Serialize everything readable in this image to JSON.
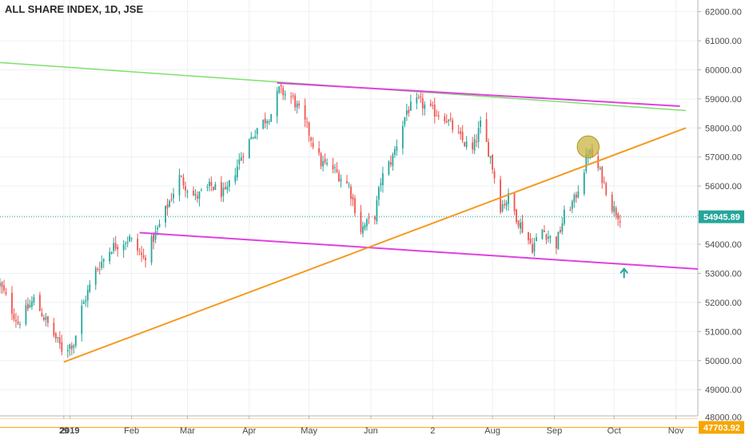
{
  "chart_data": {
    "type": "candlestick",
    "title": "ALL SHARE INDEX, 1D, JSE",
    "y_axis": {
      "position": "right",
      "range": [
        48100,
        62400
      ],
      "ticks": [
        49000,
        50000,
        51000,
        52000,
        53000,
        54000,
        55000,
        56000,
        57000,
        58000,
        59000,
        60000,
        61000,
        62000
      ],
      "tick_labels": [
        "49000.00",
        "50000.00",
        "51000.00",
        "52000.00",
        "53000.00",
        "54000.00",
        "55000.00",
        "56000.00",
        "57000.00",
        "58000.00",
        "59000.00",
        "60000.00",
        "61000.00",
        "62000.00"
      ]
    },
    "x_axis": {
      "range": [
        "2018-11-27",
        "2019-11-12"
      ],
      "ticks": [
        {
          "date": "2018-12-29",
          "label": "29"
        },
        {
          "date": "2019-01-01",
          "label": "2019"
        },
        {
          "date": "2019-02-01",
          "label": "Feb"
        },
        {
          "date": "2019-03-01",
          "label": "Mar"
        },
        {
          "date": "2019-04-01",
          "label": "Apr"
        },
        {
          "date": "2019-05-01",
          "label": "May"
        },
        {
          "date": "2019-06-01",
          "label": "Jun"
        },
        {
          "date": "2019-07-02",
          "label": "2"
        },
        {
          "date": "2019-08-01",
          "label": "Aug"
        },
        {
          "date": "2019-09-01",
          "label": "Sep"
        },
        {
          "date": "2019-10-01",
          "label": "Oct"
        },
        {
          "date": "2019-11-01",
          "label": "Nov"
        }
      ]
    },
    "grid": true,
    "colors": {
      "up": "#26a69a",
      "down": "#ef5350"
    },
    "price_markers": [
      {
        "value": 54945.89,
        "label": "54945.89",
        "color": "#26a69a",
        "line": "dotted"
      },
      {
        "value": 47703.92,
        "label": "47703.92",
        "color": "#f7a600",
        "line": "solid"
      },
      {
        "value": 48000.0,
        "label": "48000.00",
        "color": "#f7c56b",
        "line": "faint"
      }
    ],
    "key_points": [
      [
        "2018-11-27",
        52600
      ],
      [
        "2018-12-06",
        51300
      ],
      [
        "2018-12-14",
        52100
      ],
      [
        "2018-12-28",
        50400
      ],
      [
        "2019-01-03",
        50600
      ],
      [
        "2019-01-07",
        51800
      ],
      [
        "2019-01-14",
        53100
      ],
      [
        "2019-01-22",
        53900
      ],
      [
        "2019-01-31",
        54200
      ],
      [
        "2019-02-07",
        53500
      ],
      [
        "2019-02-14",
        54500
      ],
      [
        "2019-02-25",
        56300
      ],
      [
        "2019-03-05",
        55600
      ],
      [
        "2019-03-13",
        56000
      ],
      [
        "2019-03-20",
        55700
      ],
      [
        "2019-03-29",
        57200
      ],
      [
        "2019-04-05",
        58000
      ],
      [
        "2019-04-12",
        58500
      ],
      [
        "2019-04-16",
        59300
      ],
      [
        "2019-04-23",
        59000
      ],
      [
        "2019-04-30",
        58000
      ],
      [
        "2019-05-07",
        56800
      ],
      [
        "2019-05-13",
        56600
      ],
      [
        "2019-05-21",
        56000
      ],
      [
        "2019-05-27",
        54500
      ],
      [
        "2019-06-03",
        55000
      ],
      [
        "2019-06-06",
        56200
      ],
      [
        "2019-06-12",
        57000
      ],
      [
        "2019-06-19",
        58600
      ],
      [
        "2019-06-25",
        58900
      ],
      [
        "2019-07-01",
        58600
      ],
      [
        "2019-07-08",
        58400
      ],
      [
        "2019-07-15",
        57700
      ],
      [
        "2019-07-22",
        57200
      ],
      [
        "2019-07-26",
        58100
      ],
      [
        "2019-07-31",
        57000
      ],
      [
        "2019-08-05",
        55300
      ],
      [
        "2019-08-09",
        55600
      ],
      [
        "2019-08-14",
        54800
      ],
      [
        "2019-08-21",
        53900
      ],
      [
        "2019-08-26",
        54500
      ],
      [
        "2019-09-02",
        54000
      ],
      [
        "2019-09-06",
        55000
      ],
      [
        "2019-09-11",
        55500
      ],
      [
        "2019-09-16",
        56600
      ],
      [
        "2019-09-18",
        57200
      ],
      [
        "2019-09-20",
        57000
      ],
      [
        "2019-09-25",
        56300
      ],
      [
        "2019-09-30",
        55300
      ],
      [
        "2019-10-04",
        54946
      ]
    ],
    "drawings": {
      "trendlines": [
        {
          "color": "#7ee06a",
          "from": [
            "2018-11-27",
            60250
          ],
          "to": [
            "2019-11-06",
            58600
          ]
        },
        {
          "color": "#e040e0",
          "from": [
            "2019-04-15",
            59550
          ],
          "to": [
            "2019-11-03",
            58750
          ]
        },
        {
          "color": "#e040e0",
          "from": [
            "2019-02-05",
            54400
          ],
          "to": [
            "2019-11-12",
            53150
          ]
        },
        {
          "color": "#f59a23",
          "from": [
            "2018-12-29",
            49950
          ],
          "to": [
            "2019-11-06",
            58000
          ]
        }
      ],
      "circle": {
        "center": [
          "2019-09-18",
          57350
        ],
        "radius_days": 5.5,
        "fill": "#c9b13a",
        "stroke": "#b0961c"
      },
      "arrow": {
        "at": [
          "2019-10-06",
          53050
        ],
        "color": "#26a69a",
        "direction": "up"
      }
    }
  }
}
